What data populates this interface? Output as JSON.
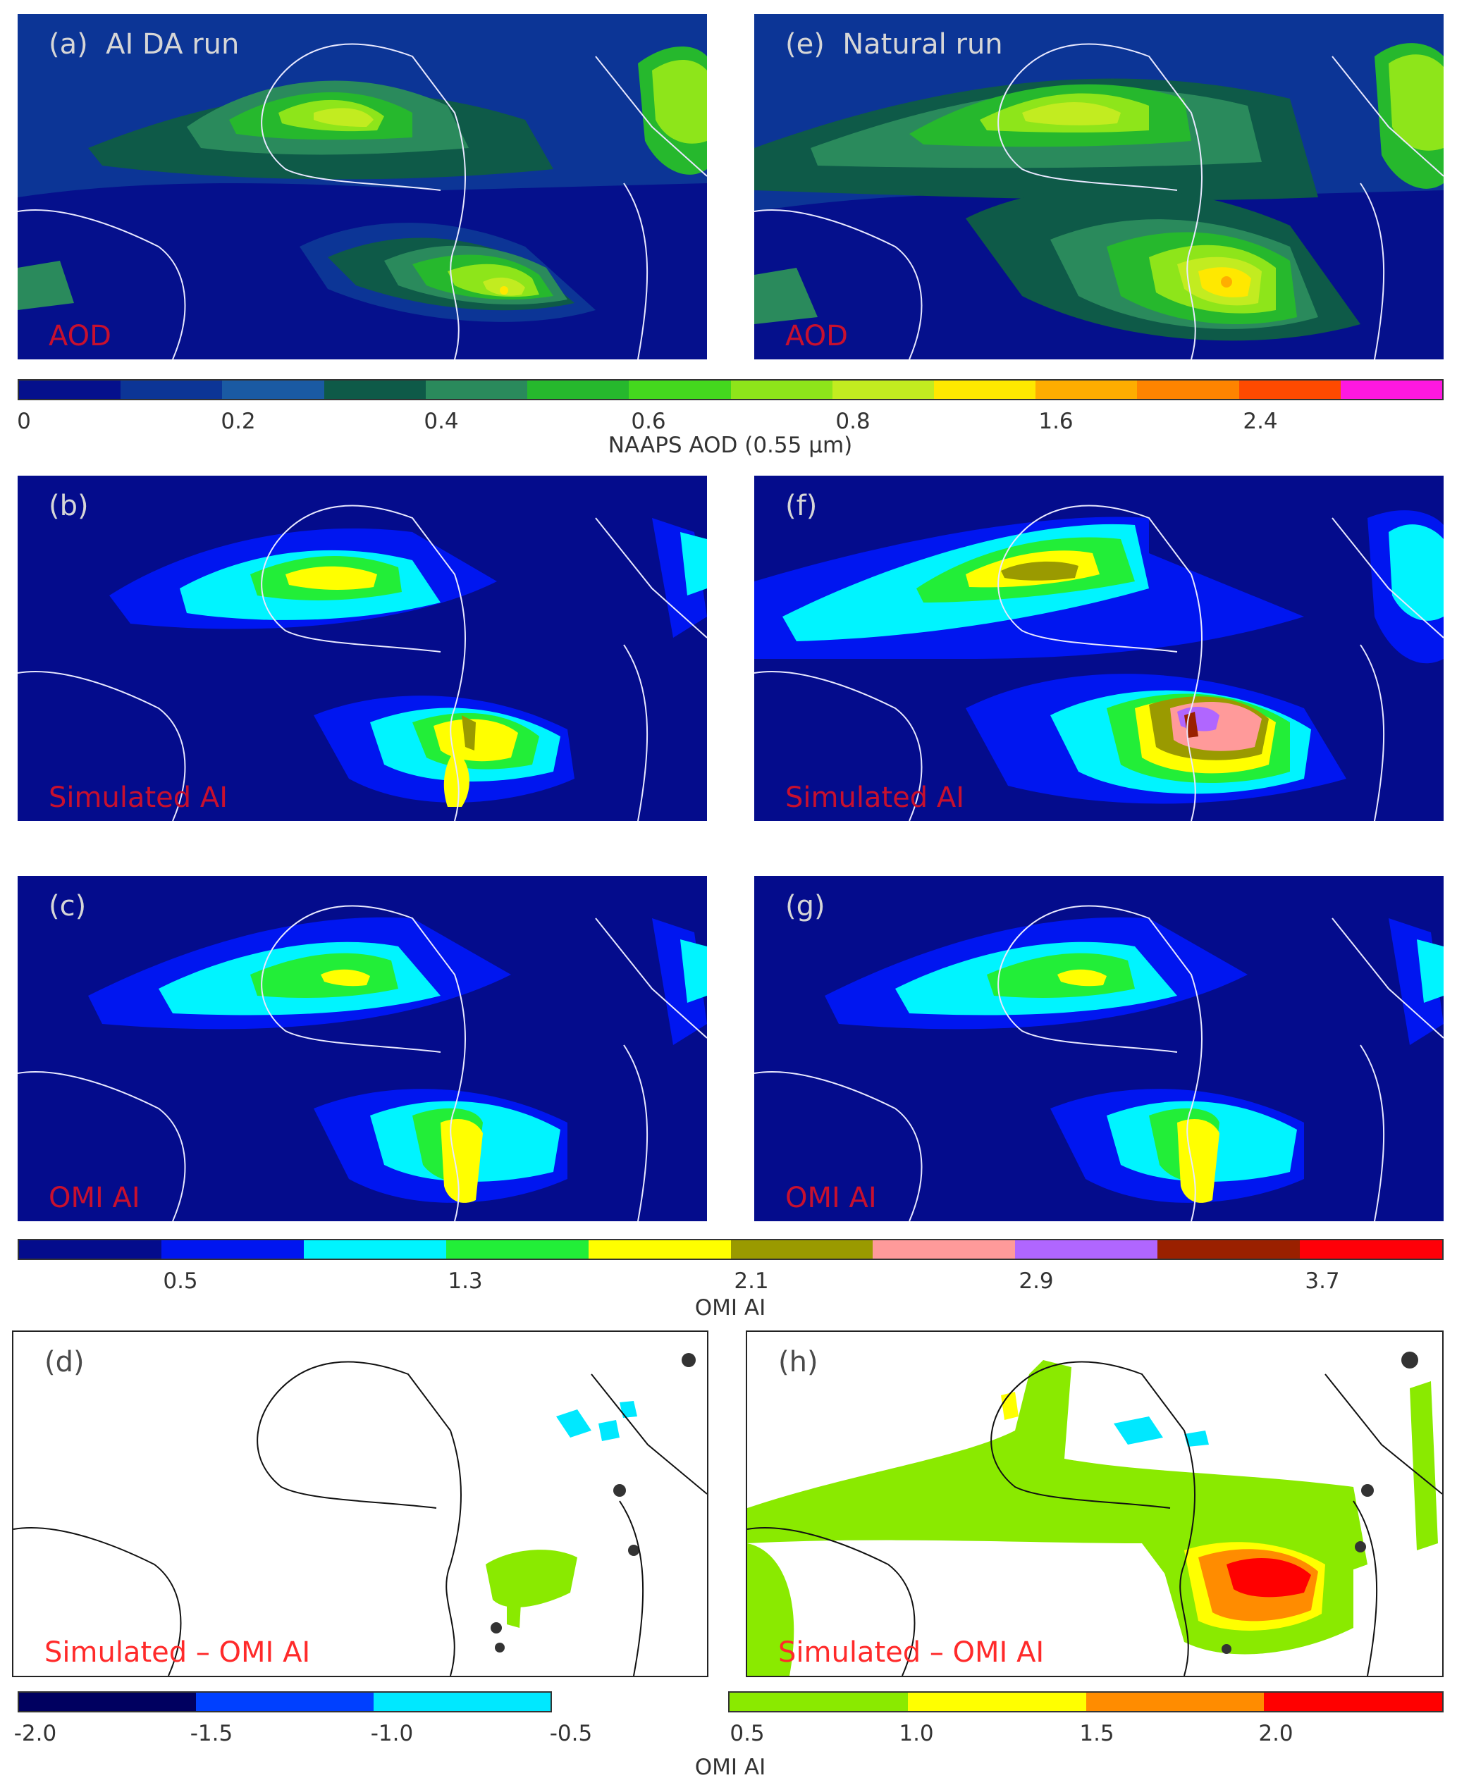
{
  "panels": [
    {
      "id": "a",
      "label": "(a)  AI DA run",
      "variable": "AOD"
    },
    {
      "id": "e",
      "label": "(e)  Natural run",
      "variable": "AOD"
    },
    {
      "id": "b",
      "label": "(b)",
      "variable": "Simulated AI"
    },
    {
      "id": "f",
      "label": "(f)",
      "variable": "Simulated AI"
    },
    {
      "id": "c",
      "label": "(c)",
      "variable": "OMI AI"
    },
    {
      "id": "g",
      "label": "(g)",
      "variable": "OMI AI"
    },
    {
      "id": "d",
      "label": "(d)",
      "variable": "Simulated – OMI AI"
    },
    {
      "id": "h",
      "label": "(h)",
      "variable": "Simulated – OMI AI"
    }
  ],
  "colorbars": {
    "aod": {
      "title": "NAAPS AOD (0.55 μm)",
      "ticks": [
        "0",
        "0.2",
        "0.4",
        "0.6",
        "0.8",
        "1.6",
        "2.4"
      ],
      "colors": [
        "#05108c",
        "#0c3596",
        "#1a5aa3",
        "#0e5a48",
        "#2a8a5c",
        "#26b82d",
        "#44d81e",
        "#8ee51a",
        "#c2ec20",
        "#ffe800",
        "#ffad00",
        "#ff8400",
        "#ff4a00",
        "#ff18e0"
      ]
    },
    "ai": {
      "title": "OMI AI",
      "ticks": [
        "0.5",
        "1.3",
        "2.1",
        "2.9",
        "3.7"
      ],
      "colors": [
        "#040c8c",
        "#0016f0",
        "#00f4ff",
        "#22ee38",
        "#ffff00",
        "#9a9a00",
        "#ff9a9a",
        "#b066ff",
        "#9a2000",
        "#ff0008"
      ]
    },
    "diff_neg": {
      "ticks": [
        "-2.0",
        "-1.5",
        "-1.0",
        "-0.5"
      ],
      "colors": [
        "#000060",
        "#0040ff",
        "#00e8ff"
      ]
    },
    "diff_pos": {
      "ticks": [
        "0.5",
        "1.0",
        "1.5",
        "2.0"
      ],
      "colors": [
        "#8aea00",
        "#ffff00",
        "#ff8c00",
        "#ff0000"
      ]
    },
    "diff_title": "OMI AI"
  }
}
